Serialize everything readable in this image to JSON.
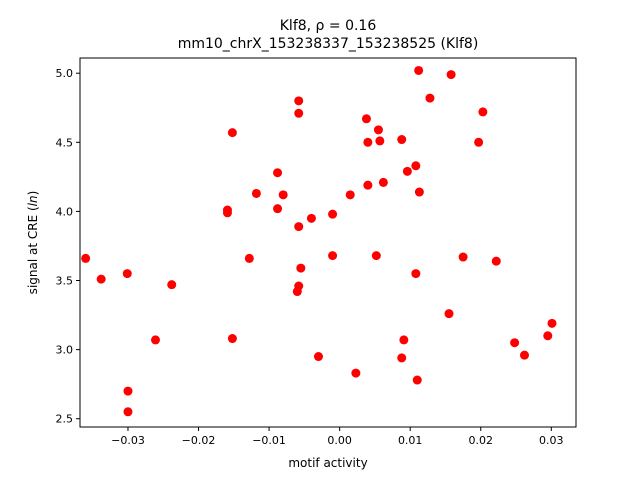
{
  "chart_data": {
    "type": "scatter",
    "title_line1": "Klf8, ρ = 0.16",
    "title_line2": "mm10_chrX_153238337_153238525 (Klf8)",
    "xlabel": "motif activity",
    "ylabel": "signal at CRE (ln)",
    "xlim": [
      -0.0368,
      0.0335
    ],
    "ylim": [
      2.44,
      5.11
    ],
    "xticks": [
      -0.03,
      -0.02,
      -0.01,
      0.0,
      0.01,
      0.02,
      0.03
    ],
    "xtick_labels": [
      "−0.03",
      "−0.02",
      "−0.01",
      "0.00",
      "0.01",
      "0.02",
      "0.03"
    ],
    "yticks": [
      2.5,
      3.0,
      3.5,
      4.0,
      4.5,
      5.0
    ],
    "ytick_labels": [
      "2.5",
      "3.0",
      "3.5",
      "4.0",
      "4.5",
      "5.0"
    ],
    "grid": false,
    "marker_color": "#ff0000",
    "points": [
      {
        "x": -0.036,
        "y": 3.66
      },
      {
        "x": -0.0338,
        "y": 3.51
      },
      {
        "x": -0.0301,
        "y": 3.55
      },
      {
        "x": -0.03,
        "y": 2.7
      },
      {
        "x": -0.03,
        "y": 2.55
      },
      {
        "x": -0.0261,
        "y": 3.07
      },
      {
        "x": -0.0238,
        "y": 3.47
      },
      {
        "x": -0.0159,
        "y": 4.01
      },
      {
        "x": -0.0159,
        "y": 3.99
      },
      {
        "x": -0.0152,
        "y": 4.57
      },
      {
        "x": -0.0152,
        "y": 3.08
      },
      {
        "x": -0.0128,
        "y": 3.66
      },
      {
        "x": -0.0118,
        "y": 4.13
      },
      {
        "x": -0.0088,
        "y": 4.28
      },
      {
        "x": -0.0088,
        "y": 4.02
      },
      {
        "x": -0.008,
        "y": 4.12
      },
      {
        "x": -0.0058,
        "y": 4.8
      },
      {
        "x": -0.0058,
        "y": 4.71
      },
      {
        "x": -0.0058,
        "y": 3.89
      },
      {
        "x": -0.0058,
        "y": 3.46
      },
      {
        "x": -0.006,
        "y": 3.42
      },
      {
        "x": -0.0055,
        "y": 3.59
      },
      {
        "x": -0.004,
        "y": 3.95
      },
      {
        "x": -0.003,
        "y": 2.95
      },
      {
        "x": -0.001,
        "y": 3.98
      },
      {
        "x": -0.001,
        "y": 3.68
      },
      {
        "x": 0.0015,
        "y": 4.12
      },
      {
        "x": 0.0023,
        "y": 2.83
      },
      {
        "x": 0.0038,
        "y": 4.67
      },
      {
        "x": 0.004,
        "y": 4.5
      },
      {
        "x": 0.004,
        "y": 4.19
      },
      {
        "x": 0.0055,
        "y": 4.59
      },
      {
        "x": 0.0057,
        "y": 4.51
      },
      {
        "x": 0.0052,
        "y": 3.68
      },
      {
        "x": 0.0062,
        "y": 4.21
      },
      {
        "x": 0.0088,
        "y": 4.52
      },
      {
        "x": 0.0096,
        "y": 4.29
      },
      {
        "x": 0.0088,
        "y": 2.94
      },
      {
        "x": 0.0091,
        "y": 3.07
      },
      {
        "x": 0.0108,
        "y": 4.33
      },
      {
        "x": 0.0112,
        "y": 5.02
      },
      {
        "x": 0.0113,
        "y": 4.14
      },
      {
        "x": 0.0108,
        "y": 3.55
      },
      {
        "x": 0.011,
        "y": 2.78
      },
      {
        "x": 0.0128,
        "y": 4.82
      },
      {
        "x": 0.0155,
        "y": 3.26
      },
      {
        "x": 0.0158,
        "y": 4.99
      },
      {
        "x": 0.0175,
        "y": 3.67
      },
      {
        "x": 0.0197,
        "y": 4.5
      },
      {
        "x": 0.0203,
        "y": 4.72
      },
      {
        "x": 0.0222,
        "y": 3.64
      },
      {
        "x": 0.0248,
        "y": 3.05
      },
      {
        "x": 0.0262,
        "y": 2.96
      },
      {
        "x": 0.0295,
        "y": 3.1
      },
      {
        "x": 0.0301,
        "y": 3.19
      }
    ]
  }
}
